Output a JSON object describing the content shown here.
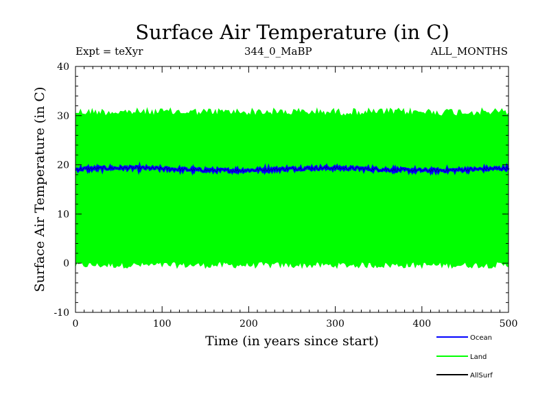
{
  "chart_data": {
    "type": "line",
    "title": "Surface Air Temperature (in C)",
    "subtitle_left": "Expt = teXyr",
    "subtitle_center": "344_0_MaBP",
    "subtitle_right": "ALL_MONTHS",
    "xlabel": "Time (in years since start)",
    "ylabel": "Surface Air Temperature (in C)",
    "xlim": [
      0,
      500
    ],
    "ylim": [
      -10,
      40
    ],
    "xticks": [
      0,
      100,
      200,
      300,
      400,
      500
    ],
    "yticks": [
      -10,
      0,
      10,
      20,
      30,
      40
    ],
    "grid": false,
    "legend_position": "bottom-right",
    "series": [
      {
        "name": "Ocean",
        "color": "#0000ff",
        "mean": 19.1,
        "range": [
          18.6,
          19.6
        ],
        "values_note_min": 18.6
      },
      {
        "name": "Land",
        "color": "#00ff00",
        "mean": 15.3,
        "range": [
          -1.0,
          31.5
        ]
      },
      {
        "name": "AllSurf",
        "color": "#000000",
        "mean": 19.1,
        "range": [
          18.6,
          19.6
        ]
      }
    ]
  }
}
